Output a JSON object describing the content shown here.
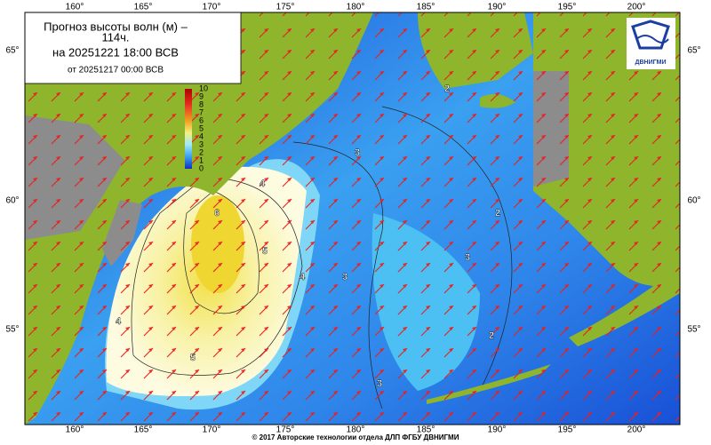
{
  "header": {
    "title_line1": "Прогноз высоты волн (м) –",
    "title_line2": "114ч.",
    "forecast_time": "на 20251221 18:00 ВСВ",
    "issued": "от 20251217 00:00 ВСВ"
  },
  "colorbar": {
    "labels": [
      "10",
      "9",
      "8",
      "7",
      "6",
      "5",
      "4",
      "3",
      "2",
      "1",
      "0"
    ]
  },
  "axes": {
    "longitudes": [
      "160°",
      "165°",
      "170°",
      "175°",
      "180°",
      "185°",
      "190°",
      "195°",
      "200°"
    ],
    "latitudes": [
      "65°",
      "60°",
      "55°"
    ]
  },
  "contours": [
    "6",
    "5",
    "4",
    "4",
    "4",
    "3",
    "3",
    "3",
    "2",
    "2",
    "2",
    "5",
    "3"
  ],
  "logo": "ДВНИГМИ",
  "footer": "© 2017 Авторские технологии отдела ДЛП ФГБУ ДВНИГМИ"
}
